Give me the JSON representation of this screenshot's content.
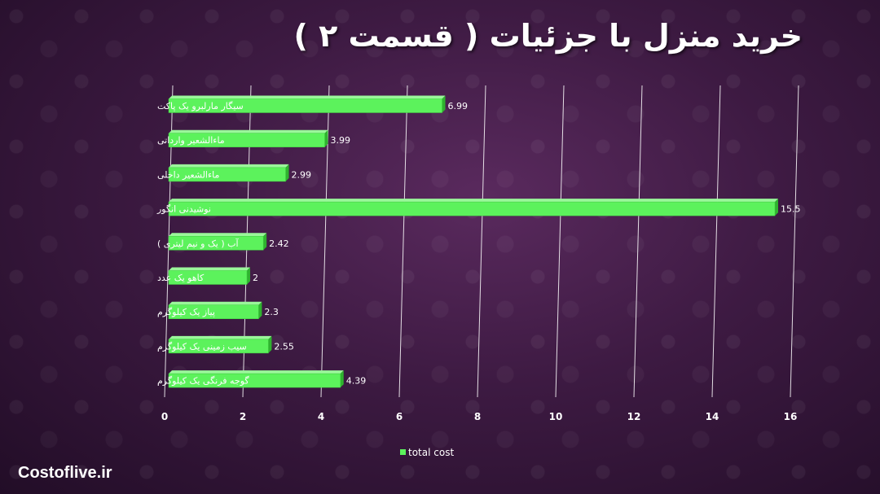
{
  "page": {
    "title": "خرید منزل با جزئیات ( قسمت ۲ )",
    "footer": "Costoflive.ir"
  },
  "chart_data": {
    "type": "bar",
    "orientation": "horizontal",
    "categories": [
      "سیگار مارلبرو یک پاکت",
      "ماءالشعیر وارداتی",
      "ماءالشعیر داخلی",
      "نوشیدنی انگور",
      "آب ( یک و نیم لیتری )",
      "کاهو  یک عدد",
      "پیاز یک کیلوگرم",
      "سیب زمینی یک کیلوگرم",
      "گوجه فرنگی یک کیلوگرم"
    ],
    "series": [
      {
        "name": "total cost",
        "values": [
          6.99,
          3.99,
          2.99,
          15.5,
          2.42,
          2,
          2.3,
          2.55,
          4.39
        ],
        "value_labels": [
          "6.99",
          "3.99",
          "2.99",
          "15.5",
          "2.42",
          "2",
          "2.3",
          "2.55",
          "4.39"
        ]
      }
    ],
    "xlim": [
      0,
      16
    ],
    "xticks": [
      "0",
      "2",
      "4",
      "6",
      "8",
      "10",
      "12",
      "14",
      "16"
    ],
    "grid": true,
    "legend_position": "bottom",
    "bar_color": "#5cf25c"
  }
}
